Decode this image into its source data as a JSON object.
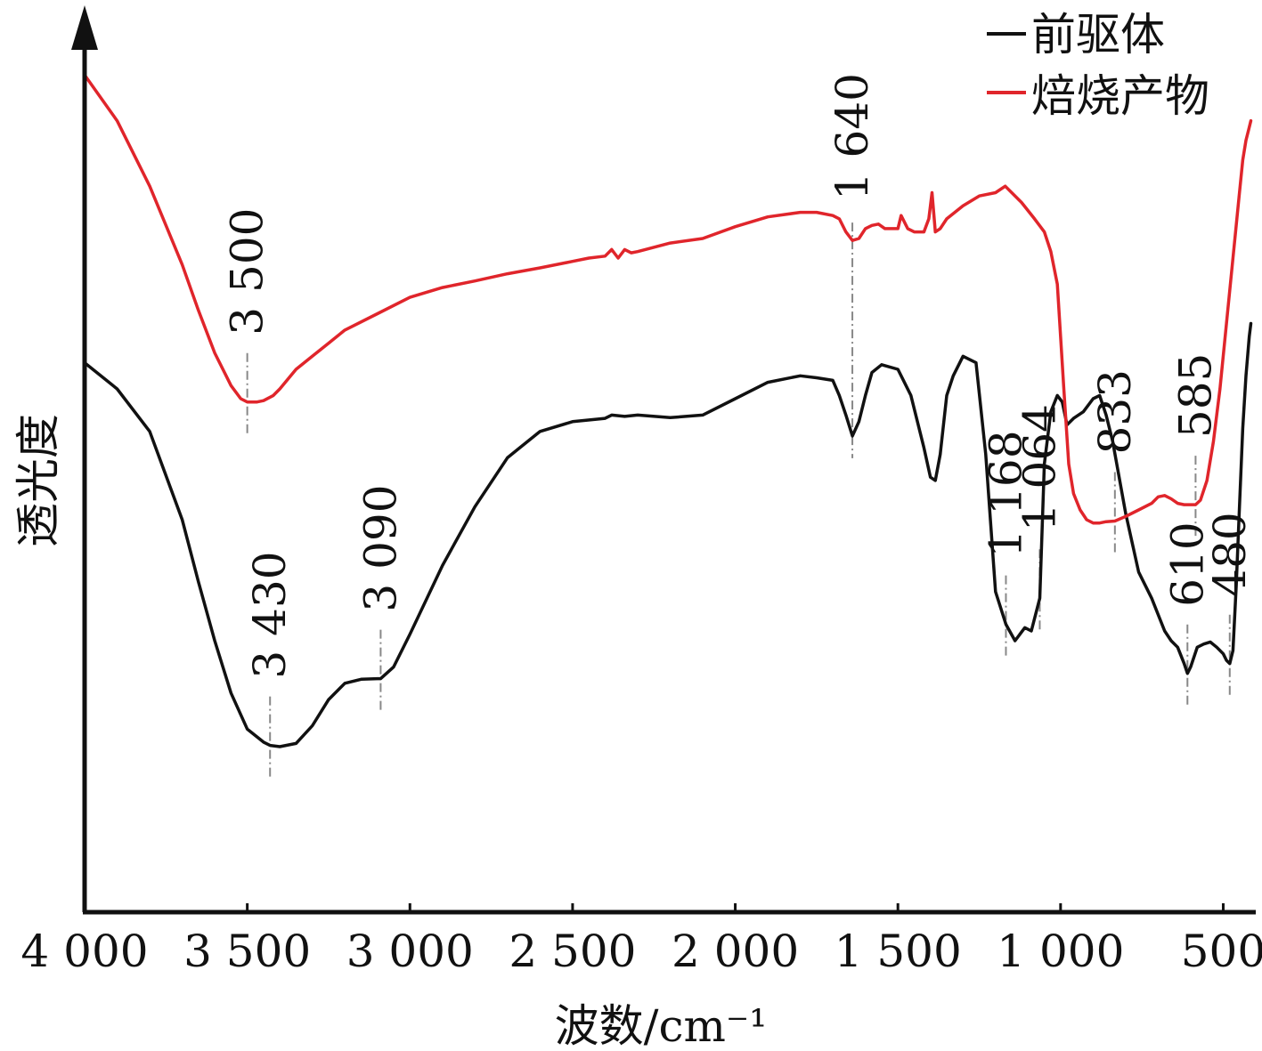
{
  "chart_data": {
    "type": "line",
    "title": "",
    "xlabel": "波数/cm⁻¹",
    "ylabel": "透光度",
    "xlim": [
      4000,
      400
    ],
    "x_reversed": true,
    "y_ticks_shown": false,
    "grid": false,
    "legend_position": "top-right",
    "x_ticks": [
      {
        "value": 4000,
        "label": "4 000"
      },
      {
        "value": 3500,
        "label": "3 500"
      },
      {
        "value": 3000,
        "label": "3 000"
      },
      {
        "value": 2500,
        "label": "2 500"
      },
      {
        "value": 2000,
        "label": "2 000"
      },
      {
        "value": 1500,
        "label": "1 500"
      },
      {
        "value": 1000,
        "label": "1 000"
      },
      {
        "value": 500,
        "label": "500"
      }
    ],
    "series": [
      {
        "name": "前驱体",
        "color": "#111111",
        "x": [
          4000,
          3900,
          3800,
          3700,
          3650,
          3600,
          3550,
          3500,
          3450,
          3430,
          3400,
          3350,
          3300,
          3250,
          3200,
          3150,
          3100,
          3090,
          3050,
          3000,
          2900,
          2800,
          2700,
          2600,
          2500,
          2400,
          2380,
          2340,
          2300,
          2200,
          2100,
          2000,
          1900,
          1800,
          1750,
          1700,
          1680,
          1660,
          1640,
          1620,
          1600,
          1580,
          1550,
          1500,
          1460,
          1420,
          1400,
          1385,
          1370,
          1350,
          1330,
          1300,
          1260,
          1230,
          1200,
          1168,
          1140,
          1110,
          1090,
          1064,
          1050,
          1030,
          1010,
          995,
          980,
          960,
          930,
          900,
          880,
          860,
          840,
          800,
          760,
          720,
          700,
          680,
          660,
          640,
          620,
          610,
          600,
          580,
          560,
          540,
          520,
          500,
          490,
          480,
          470,
          460,
          450,
          440,
          430,
          420,
          415
        ],
        "y": [
          84.0,
          80.0,
          73.5,
          60.0,
          50.5,
          41.5,
          33.5,
          28.0,
          26.0,
          25.5,
          25.3,
          25.8,
          28.5,
          32.5,
          35.0,
          35.6,
          35.7,
          35.7,
          37.5,
          42.5,
          53.0,
          62.0,
          69.5,
          73.5,
          75.0,
          75.5,
          76.0,
          75.8,
          76.0,
          75.6,
          76.0,
          78.5,
          81.0,
          82.0,
          81.7,
          81.3,
          79.0,
          76.0,
          72.8,
          75.0,
          79.0,
          82.5,
          83.7,
          83.0,
          79.0,
          71.0,
          66.5,
          66.0,
          70.0,
          79.0,
          82.0,
          85.0,
          84.0,
          70.0,
          49.0,
          44.0,
          41.5,
          43.5,
          43.0,
          48.0,
          68.5,
          76.5,
          79.0,
          78.0,
          74.5,
          75.5,
          76.5,
          78.5,
          79.0,
          76.0,
          72.0,
          61.0,
          52.0,
          48.0,
          45.5,
          43.0,
          41.5,
          40.5,
          38.0,
          36.5,
          37.5,
          40.5,
          41.0,
          41.3,
          40.5,
          39.5,
          38.5,
          38.0,
          40.0,
          50.0,
          62.0,
          74.0,
          82.0,
          88.0,
          90.0
        ]
      },
      {
        "name": "焙烧产物",
        "color": "#e0252b",
        "x": [
          4000,
          3900,
          3800,
          3700,
          3650,
          3600,
          3550,
          3520,
          3500,
          3470,
          3450,
          3420,
          3400,
          3350,
          3300,
          3250,
          3200,
          3100,
          3000,
          2900,
          2800,
          2700,
          2600,
          2500,
          2450,
          2400,
          2380,
          2360,
          2340,
          2320,
          2300,
          2200,
          2100,
          2000,
          1900,
          1800,
          1750,
          1700,
          1680,
          1660,
          1640,
          1620,
          1600,
          1580,
          1560,
          1540,
          1520,
          1500,
          1490,
          1470,
          1450,
          1420,
          1405,
          1395,
          1385,
          1370,
          1350,
          1300,
          1250,
          1200,
          1170,
          1150,
          1120,
          1080,
          1050,
          1030,
          1010,
          990,
          975,
          960,
          940,
          920,
          900,
          880,
          860,
          833,
          800,
          760,
          720,
          700,
          680,
          660,
          640,
          620,
          600,
          585,
          570,
          550,
          530,
          510,
          490,
          470,
          450,
          440,
          430,
          420,
          415
        ],
        "y": [
          128.0,
          121.0,
          111.0,
          99.0,
          92.0,
          85.5,
          80.5,
          78.5,
          78.0,
          78.0,
          78.2,
          79.0,
          80.0,
          83.0,
          85.0,
          87.0,
          89.0,
          91.5,
          94.0,
          95.5,
          96.5,
          97.6,
          98.5,
          99.5,
          100.0,
          100.3,
          101.3,
          100.0,
          101.3,
          100.8,
          101.0,
          102.3,
          103.0,
          104.8,
          106.3,
          107.0,
          107.0,
          106.5,
          106.0,
          104.0,
          102.7,
          103.0,
          104.5,
          105.0,
          105.2,
          104.5,
          104.5,
          104.5,
          106.5,
          104.5,
          104.0,
          104.0,
          106.0,
          110.0,
          104.0,
          104.5,
          106.0,
          108.0,
          109.5,
          110.0,
          111.0,
          110.0,
          108.5,
          106.0,
          104.0,
          101.0,
          96.0,
          80.0,
          68.5,
          64.0,
          61.5,
          60.0,
          59.5,
          59.5,
          59.7,
          59.8,
          60.5,
          61.5,
          62.5,
          63.5,
          63.7,
          63.2,
          62.5,
          62.3,
          62.3,
          62.3,
          63.0,
          66.0,
          72.0,
          80.0,
          90.0,
          100.0,
          110.0,
          115.0,
          118.0,
          120.0,
          121.0
        ]
      }
    ],
    "annotations": [
      {
        "label": "3 500",
        "x": 3500,
        "series": "焙烧产物"
      },
      {
        "label": "1 640",
        "x": 1640,
        "series": "both"
      },
      {
        "label": "833",
        "x": 833,
        "series": "焙烧产物"
      },
      {
        "label": "585",
        "x": 585,
        "series": "焙烧产物"
      },
      {
        "label": "3 430",
        "x": 3430,
        "series": "前驱体"
      },
      {
        "label": "3 090",
        "x": 3090,
        "series": "前驱体"
      },
      {
        "label": "1 168",
        "x": 1168,
        "series": "前驱体"
      },
      {
        "label": "1 064",
        "x": 1064,
        "series": "前驱体"
      },
      {
        "label": "610",
        "x": 610,
        "series": "前驱体"
      },
      {
        "label": "480",
        "x": 480,
        "series": "前驱体"
      }
    ]
  }
}
